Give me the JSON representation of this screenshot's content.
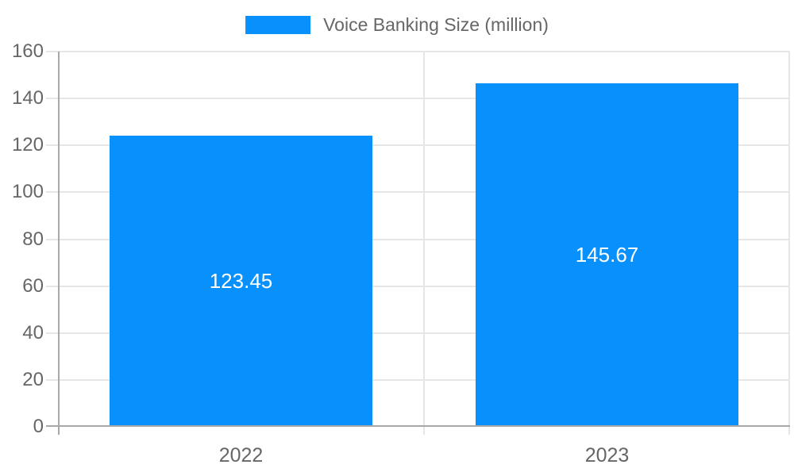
{
  "chart_data": {
    "type": "bar",
    "title": "",
    "xlabel": "",
    "ylabel": "",
    "legend": {
      "label": "Voice Banking Size (million)",
      "position": "top-center"
    },
    "categories": [
      "2022",
      "2023"
    ],
    "values": [
      123.45,
      145.67
    ],
    "value_labels": [
      "123.45",
      "145.67"
    ],
    "ylim": [
      0,
      160
    ],
    "ytick_step": 20,
    "yticks": [
      "0",
      "20",
      "40",
      "60",
      "80",
      "100",
      "120",
      "140",
      "160"
    ],
    "grid": true,
    "layout": {
      "bar_fraction": 0.716
    },
    "colors": {
      "bar": "#0890fc",
      "bar_label": "#ffffff",
      "axis_text": "#666666",
      "grid_line": "#e6e6e6",
      "axis_line": "#a8a8a8",
      "background": "#ffffff"
    }
  }
}
